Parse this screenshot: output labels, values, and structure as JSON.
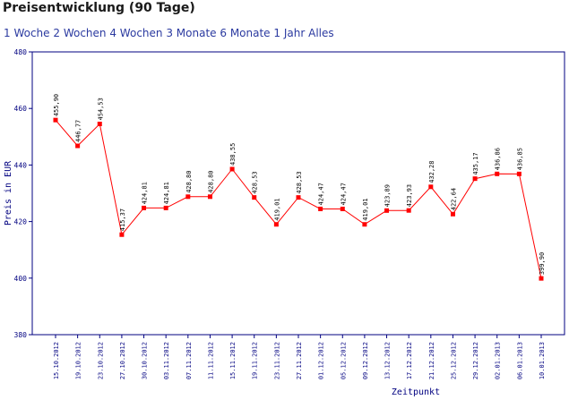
{
  "page": {
    "title": "Preisentwicklung (90 Tage)"
  },
  "range_links": [
    {
      "label": "1 Woche"
    },
    {
      "label": "2 Wochen"
    },
    {
      "label": "4 Wochen"
    },
    {
      "label": "3 Monate"
    },
    {
      "label": "6 Monate"
    },
    {
      "label": "1 Jahr"
    },
    {
      "label": "Alles"
    }
  ],
  "colors": {
    "line": "#ff0000",
    "marker": "#ff0000",
    "axis": "#000080",
    "axis_text": "#000080",
    "grid": "#c8c8c8",
    "link": "#2b3aa0"
  },
  "chart_data": {
    "type": "line",
    "title": "",
    "xlabel": "Zeitpunkt",
    "ylabel": "Preis in EUR",
    "ylim": [
      380,
      480
    ],
    "yticks": [
      380,
      400,
      420,
      440,
      460,
      480
    ],
    "grid": false,
    "x": [
      "15.10.2012",
      "19.10.2012",
      "23.10.2012",
      "27.10.2012",
      "30.10.2012",
      "03.11.2012",
      "07.11.2012",
      "11.11.2012",
      "15.11.2012",
      "19.11.2012",
      "23.11.2012",
      "27.11.2012",
      "01.12.2012",
      "05.12.2012",
      "09.12.2012",
      "13.12.2012",
      "17.12.2012",
      "21.12.2012",
      "25.12.2012",
      "29.12.2012",
      "02.01.2013",
      "06.01.2013",
      "10.01.2013"
    ],
    "series": [
      {
        "values": [
          455.9,
          446.77,
          454.53,
          415.37,
          424.81,
          424.81,
          428.8,
          428.8,
          438.55,
          428.53,
          419.01,
          428.53,
          424.47,
          424.47,
          419.01,
          423.89,
          423.93,
          432.28,
          422.64,
          435.17,
          436.86,
          436.85,
          399.9
        ],
        "labels": [
          "455,90",
          "446,77",
          "454,53",
          "415,37",
          "424,81",
          "424,81",
          "428,80",
          "428,80",
          "438,55",
          "428,53",
          "419,01",
          "428,53",
          "424,47",
          "424,47",
          "419,01",
          "423,89",
          "423,93",
          "432,28",
          "422,64",
          "435,17",
          "436,86",
          "436,85",
          "399,90"
        ]
      }
    ]
  }
}
